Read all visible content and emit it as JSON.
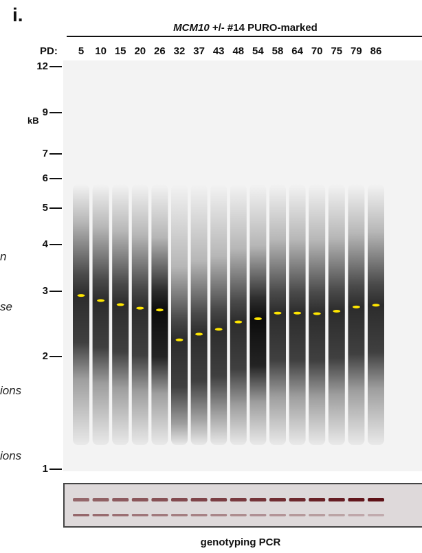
{
  "panel_letter": "i.",
  "title": {
    "gene": "MCM10",
    "rest": " +/- #14 PURO-marked"
  },
  "pd_label": "PD:",
  "pd_values": [
    "5",
    "10",
    "15",
    "20",
    "26",
    "32",
    "37",
    "43",
    "48",
    "54",
    "58",
    "64",
    "70",
    "75",
    "79",
    "86"
  ],
  "marker_unit": "kB",
  "markers": [
    {
      "label": "12",
      "kb": 12
    },
    {
      "label": "9",
      "kb": 9
    },
    {
      "label": "7",
      "kb": 7
    },
    {
      "label": "6",
      "kb": 6
    },
    {
      "label": "5",
      "kb": 5
    },
    {
      "label": "4",
      "kb": 4
    },
    {
      "label": "3",
      "kb": 3
    },
    {
      "label": "2",
      "kb": 2
    },
    {
      "label": "1",
      "kb": 1
    }
  ],
  "side_notes": [
    "n",
    "se",
    "ions",
    "ions"
  ],
  "lane_mean_kb": [
    2.92,
    2.83,
    2.76,
    2.7,
    2.67,
    2.22,
    2.3,
    2.37,
    2.48,
    2.53,
    2.62,
    2.62,
    2.61,
    2.65,
    2.72,
    2.75
  ],
  "colors": {
    "mean_marker": "#ffe600",
    "gel_band": "#000000",
    "pcr_band": "#5a0a10"
  },
  "pcr_label": "genotyping PCR"
}
